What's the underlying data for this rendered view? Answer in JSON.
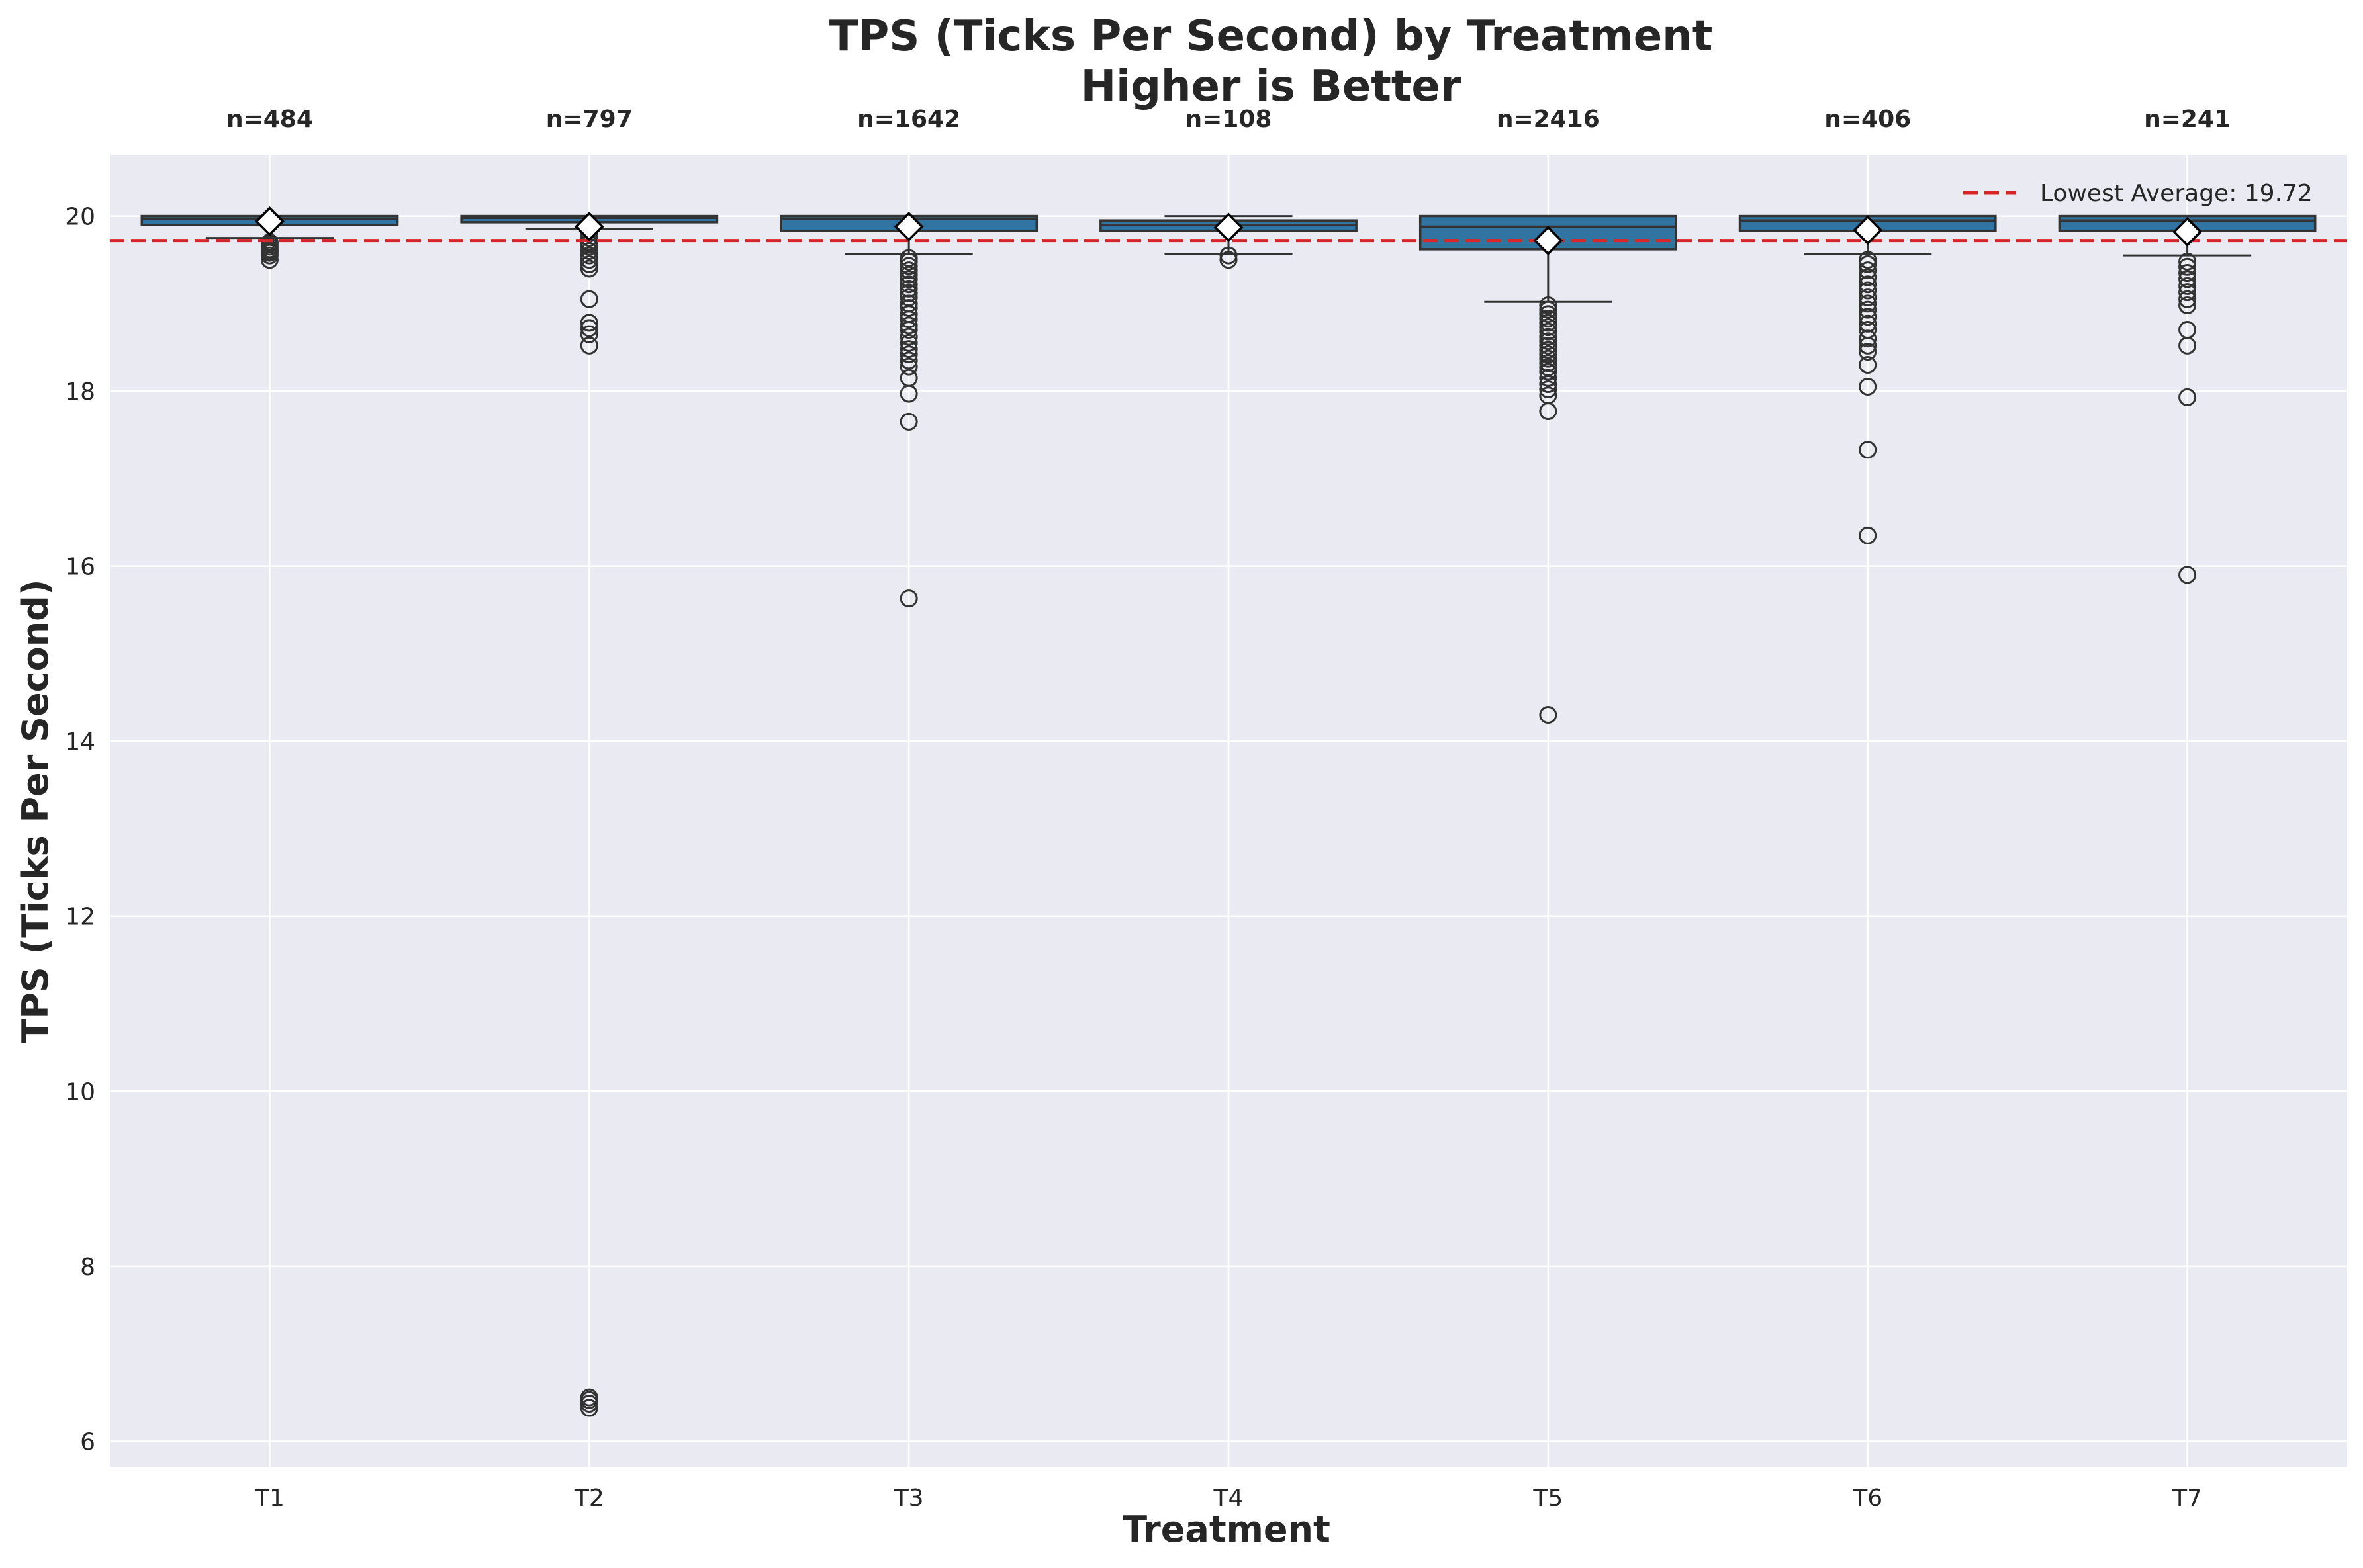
{
  "colors": {
    "plot_background": "#eaeaf2",
    "grid": "#ffffff",
    "box_fill": "#3274a1",
    "box_edge": "#333333",
    "reference_line": "#d62728",
    "mean_marker": "#ffffff"
  },
  "chart_data": {
    "type": "box",
    "title_line1": "TPS (Ticks Per Second) by Treatment",
    "title_line2": "Higher is Better",
    "xlabel": "Treatment",
    "ylabel": "TPS (Ticks Per Second)",
    "ylim": [
      5.7,
      20.7
    ],
    "yticks": [
      6,
      8,
      10,
      12,
      14,
      16,
      18,
      20
    ],
    "grid": true,
    "legend_position": "top-right",
    "reference_line": {
      "label": "Lowest Average: 19.72",
      "value": 19.72,
      "style": "dashed"
    },
    "categories": [
      "T1",
      "T2",
      "T3",
      "T4",
      "T5",
      "T6",
      "T7"
    ],
    "groups": [
      {
        "category": "T1",
        "n_label": "n=484",
        "q1": 19.9,
        "median": 19.97,
        "q3": 20.0,
        "whisker_low": 19.75,
        "whisker_high": 20.0,
        "mean": 19.94,
        "outliers": [
          19.7,
          19.68,
          19.65,
          19.62,
          19.6,
          19.58,
          19.55,
          19.5
        ]
      },
      {
        "category": "T2",
        "n_label": "n=797",
        "q1": 19.93,
        "median": 19.98,
        "q3": 20.0,
        "whisker_low": 19.85,
        "whisker_high": 20.0,
        "mean": 19.88,
        "outliers": [
          19.8,
          19.75,
          19.7,
          19.68,
          19.65,
          19.6,
          19.55,
          19.5,
          19.45,
          19.4,
          19.05,
          18.78,
          18.72,
          18.65,
          18.52,
          6.5,
          6.47,
          6.43,
          6.38
        ]
      },
      {
        "category": "T3",
        "n_label": "n=1642",
        "q1": 19.83,
        "median": 19.97,
        "q3": 20.0,
        "whisker_low": 19.57,
        "whisker_high": 20.0,
        "mean": 19.88,
        "outliers": [
          19.52,
          19.48,
          19.43,
          19.38,
          19.33,
          19.28,
          19.22,
          19.17,
          19.12,
          19.07,
          19.0,
          18.95,
          18.88,
          18.82,
          18.75,
          18.7,
          18.62,
          18.55,
          18.48,
          18.42,
          18.35,
          18.28,
          18.15,
          17.97,
          17.65,
          15.63
        ]
      },
      {
        "category": "T4",
        "n_label": "n=108",
        "q1": 19.83,
        "median": 19.9,
        "q3": 19.95,
        "whisker_low": 19.57,
        "whisker_high": 20.0,
        "mean": 19.87,
        "outliers": [
          19.55,
          19.5
        ]
      },
      {
        "category": "T5",
        "n_label": "n=2416",
        "q1": 19.62,
        "median": 19.88,
        "q3": 20.0,
        "whisker_low": 19.02,
        "whisker_high": 20.0,
        "mean": 19.72,
        "outliers": [
          18.98,
          18.93,
          18.88,
          18.83,
          18.78,
          18.73,
          18.68,
          18.62,
          18.57,
          18.52,
          18.47,
          18.42,
          18.37,
          18.32,
          18.27,
          18.22,
          18.15,
          18.08,
          18.02,
          17.95,
          17.77,
          14.3
        ]
      },
      {
        "category": "T6",
        "n_label": "n=406",
        "q1": 19.83,
        "median": 19.95,
        "q3": 20.0,
        "whisker_low": 19.57,
        "whisker_high": 20.0,
        "mean": 19.84,
        "outliers": [
          19.5,
          19.45,
          19.38,
          19.3,
          19.22,
          19.15,
          19.07,
          19.0,
          18.93,
          18.85,
          18.77,
          18.7,
          18.6,
          18.52,
          18.45,
          18.3,
          18.05,
          17.33,
          16.35
        ]
      },
      {
        "category": "T7",
        "n_label": "n=241",
        "q1": 19.83,
        "median": 19.95,
        "q3": 20.0,
        "whisker_low": 19.55,
        "whisker_high": 20.0,
        "mean": 19.82,
        "outliers": [
          19.48,
          19.42,
          19.35,
          19.28,
          19.2,
          19.13,
          19.05,
          18.98,
          18.7,
          18.52,
          17.93,
          15.9
        ]
      }
    ]
  }
}
